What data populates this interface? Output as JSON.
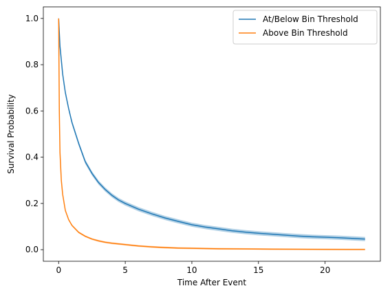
{
  "chart_data": {
    "type": "line",
    "title": "",
    "xlabel": "Time After Event",
    "ylabel": "Survival Probability",
    "xlim": [
      -1.15,
      24.15
    ],
    "ylim": [
      -0.05,
      1.05
    ],
    "xticks": [
      0,
      5,
      10,
      15,
      20
    ],
    "yticks": [
      0.0,
      0.2,
      0.4,
      0.6,
      0.8,
      1.0
    ],
    "xtick_labels": [
      "0",
      "5",
      "10",
      "15",
      "20"
    ],
    "ytick_labels": [
      "0.0",
      "0.2",
      "0.4",
      "0.6",
      "0.8",
      "1.0"
    ],
    "grid": false,
    "legend_position": "top-right",
    "series": [
      {
        "name": "At/Below Bin Threshold",
        "color": "#1f77b4",
        "band_color": "#1f77b4",
        "band_halfwidth": 0.009,
        "x": [
          0,
          0.1,
          0.2,
          0.3,
          0.5,
          0.75,
          1.0,
          1.5,
          2.0,
          2.5,
          3.0,
          3.5,
          4.0,
          4.5,
          5.0,
          6.0,
          7.0,
          8.0,
          9.0,
          10.0,
          11.0,
          12.0,
          13.0,
          14.0,
          15.0,
          16.0,
          17.0,
          18.0,
          19.0,
          20.0,
          21.0,
          22.0,
          23.0
        ],
        "y": [
          1.0,
          0.88,
          0.82,
          0.76,
          0.68,
          0.61,
          0.55,
          0.46,
          0.38,
          0.33,
          0.29,
          0.26,
          0.235,
          0.215,
          0.2,
          0.175,
          0.155,
          0.137,
          0.122,
          0.108,
          0.098,
          0.09,
          0.082,
          0.076,
          0.071,
          0.067,
          0.063,
          0.059,
          0.056,
          0.054,
          0.052,
          0.049,
          0.046
        ]
      },
      {
        "name": "Above Bin Threshold",
        "color": "#ff7f0e",
        "band_color": "#ff7f0e",
        "band_halfwidth": 0.004,
        "x": [
          0,
          0.05,
          0.1,
          0.2,
          0.3,
          0.5,
          0.75,
          1.0,
          1.5,
          2.0,
          2.5,
          3.0,
          3.5,
          4.0,
          5.0,
          6.0,
          7.0,
          8.0,
          9.0,
          10.0,
          12.0,
          14.0,
          16.0,
          18.0,
          20.0,
          23.0
        ],
        "y": [
          1.0,
          0.6,
          0.42,
          0.3,
          0.24,
          0.17,
          0.13,
          0.105,
          0.075,
          0.058,
          0.046,
          0.038,
          0.032,
          0.028,
          0.022,
          0.016,
          0.012,
          0.009,
          0.007,
          0.006,
          0.004,
          0.003,
          0.002,
          0.0015,
          0.001,
          0.0005
        ]
      }
    ]
  }
}
